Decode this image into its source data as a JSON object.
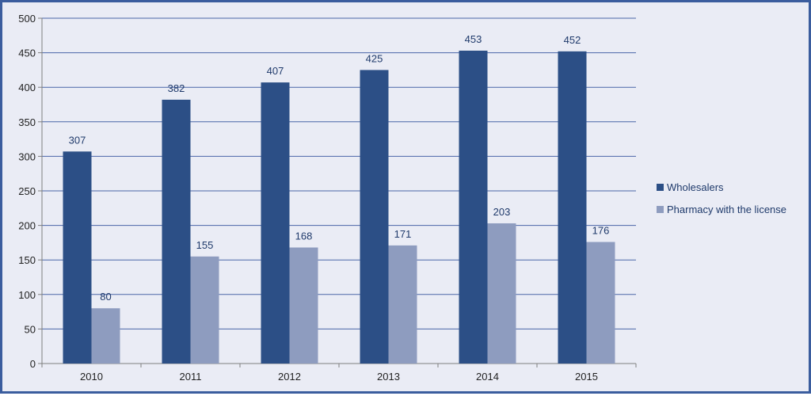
{
  "chart_data": {
    "type": "bar",
    "title": "",
    "xlabel": "",
    "ylabel": "",
    "categories": [
      "2010",
      "2011",
      "2012",
      "2013",
      "2014",
      "2015"
    ],
    "series": [
      {
        "name": "Wholesalers",
        "values": [
          307,
          382,
          407,
          425,
          453,
          452
        ],
        "color": "#2c4f86"
      },
      {
        "name": "Pharmacy with the license",
        "values": [
          80,
          155,
          168,
          171,
          203,
          176
        ],
        "color": "#8e9cbf"
      }
    ],
    "ylim": [
      0,
      500
    ],
    "yticks": [
      0,
      50,
      100,
      150,
      200,
      250,
      300,
      350,
      400,
      450,
      500
    ],
    "grid": true,
    "legend": "right",
    "data_labels": true
  }
}
